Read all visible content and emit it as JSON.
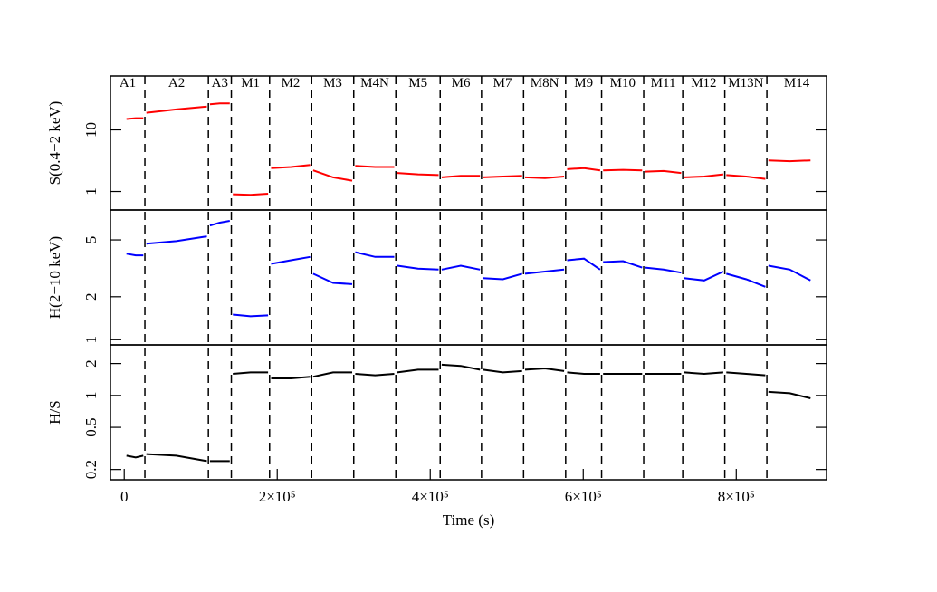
{
  "chart_data": [
    {
      "type": "line",
      "ylabel": "S(0.4−2 keV)",
      "color": "#ff0000",
      "log_y": true,
      "ylim": [
        0.5,
        75
      ],
      "yticks": [
        1,
        10
      ],
      "xlim": [
        -18000,
        918000
      ],
      "segment_labels": [
        "A1",
        "A2",
        "A3",
        "M1",
        "M2",
        "M3",
        "M4N",
        "M5",
        "M6",
        "M7",
        "M8N",
        "M9",
        "M10",
        "M11",
        "M12",
        "M13N",
        "M14"
      ],
      "vlines": [
        27000,
        110000,
        140000,
        190000,
        245000,
        300000,
        355000,
        413000,
        467000,
        522000,
        577000,
        624000,
        679000,
        730000,
        785000,
        840000
      ],
      "x": [
        3000,
        15000,
        25000,
        27000,
        29000,
        68000,
        108000,
        110000,
        112000,
        125000,
        138000,
        140000,
        142000,
        165000,
        188000,
        190000,
        192000,
        218000,
        243000,
        245000,
        247000,
        273000,
        298000,
        300000,
        302000,
        328000,
        353000,
        355000,
        357000,
        384000,
        411000,
        413000,
        415000,
        440000,
        465000,
        467000,
        469000,
        495000,
        520000,
        522000,
        524000,
        550000,
        575000,
        577000,
        579000,
        601000,
        622000,
        624000,
        626000,
        652000,
        677000,
        679000,
        681000,
        705000,
        728000,
        730000,
        732000,
        758000,
        783000,
        785000,
        787000,
        813000,
        838000,
        840000,
        842000,
        870000,
        897000
      ],
      "values": [
        15,
        15.5,
        15.5,
        null,
        19,
        21.5,
        24,
        null,
        26,
        27,
        27,
        null,
        0.9,
        0.88,
        0.92,
        null,
        2.4,
        2.5,
        2.7,
        null,
        2.2,
        1.7,
        1.5,
        null,
        2.6,
        2.5,
        2.5,
        null,
        2.0,
        1.9,
        1.85,
        null,
        1.7,
        1.8,
        1.8,
        null,
        1.7,
        1.75,
        1.8,
        null,
        1.7,
        1.65,
        1.75,
        null,
        2.3,
        2.4,
        2.2,
        null,
        2.2,
        2.25,
        2.2,
        null,
        2.1,
        2.15,
        2.0,
        null,
        1.7,
        1.75,
        1.9,
        null,
        1.85,
        1.75,
        1.6,
        null,
        3.2,
        3.1,
        3.2
      ]
    },
    {
      "type": "line",
      "ylabel": "H(2−10 keV)",
      "color": "#0000ff",
      "log_y": true,
      "ylim": [
        0.92,
        8.1
      ],
      "yticks": [
        1,
        2,
        5
      ],
      "xlim": [
        -18000,
        918000
      ],
      "x": [
        3000,
        15000,
        25000,
        27000,
        29000,
        68000,
        108000,
        110000,
        112000,
        125000,
        138000,
        140000,
        142000,
        165000,
        188000,
        190000,
        192000,
        218000,
        243000,
        245000,
        247000,
        273000,
        298000,
        300000,
        302000,
        328000,
        353000,
        355000,
        357000,
        384000,
        411000,
        413000,
        415000,
        440000,
        465000,
        467000,
        469000,
        495000,
        520000,
        522000,
        524000,
        550000,
        575000,
        577000,
        579000,
        601000,
        622000,
        624000,
        626000,
        652000,
        677000,
        679000,
        681000,
        705000,
        728000,
        730000,
        732000,
        758000,
        783000,
        785000,
        787000,
        813000,
        838000,
        840000,
        842000,
        870000,
        897000
      ],
      "values": [
        4.0,
        3.9,
        3.9,
        null,
        4.7,
        4.9,
        5.3,
        null,
        6.3,
        6.6,
        6.8,
        null,
        1.5,
        1.46,
        1.48,
        null,
        3.4,
        3.6,
        3.8,
        null,
        2.9,
        2.5,
        2.45,
        null,
        4.1,
        3.8,
        3.8,
        null,
        3.3,
        3.15,
        3.1,
        null,
        3.1,
        3.3,
        3.1,
        null,
        2.7,
        2.65,
        2.9,
        null,
        2.9,
        3.0,
        3.1,
        null,
        3.6,
        3.7,
        3.1,
        null,
        3.5,
        3.55,
        3.2,
        null,
        3.2,
        3.1,
        2.95,
        null,
        2.7,
        2.6,
        3.0,
        null,
        2.9,
        2.65,
        2.35,
        null,
        3.3,
        3.1,
        2.6
      ]
    },
    {
      "type": "line",
      "ylabel": "H/S",
      "xlabel": "Time (s)",
      "color": "#000000",
      "log_y": true,
      "ylim": [
        0.16,
        3.0
      ],
      "yticks": [
        0.2,
        0.5,
        1,
        2
      ],
      "xlim": [
        -18000,
        918000
      ],
      "xticks": [
        0,
        {
          "value": 200000,
          "label": "2×10⁵"
        },
        {
          "value": 400000,
          "label": "4×10⁵"
        },
        {
          "value": 600000,
          "label": "6×10⁵"
        },
        {
          "value": 800000,
          "label": "8×10⁵"
        }
      ],
      "x": [
        3000,
        15000,
        25000,
        27000,
        29000,
        68000,
        108000,
        110000,
        112000,
        125000,
        138000,
        140000,
        142000,
        165000,
        188000,
        190000,
        192000,
        218000,
        243000,
        245000,
        247000,
        273000,
        298000,
        300000,
        302000,
        328000,
        353000,
        355000,
        357000,
        384000,
        411000,
        413000,
        415000,
        440000,
        465000,
        467000,
        469000,
        495000,
        520000,
        522000,
        524000,
        550000,
        575000,
        577000,
        579000,
        601000,
        622000,
        624000,
        626000,
        652000,
        677000,
        679000,
        681000,
        705000,
        728000,
        730000,
        732000,
        758000,
        783000,
        785000,
        787000,
        813000,
        838000,
        840000,
        842000,
        870000,
        897000
      ],
      "values": [
        0.27,
        0.26,
        0.27,
        null,
        0.28,
        0.27,
        0.24,
        null,
        0.24,
        0.24,
        0.24,
        null,
        1.6,
        1.65,
        1.65,
        null,
        1.45,
        1.45,
        1.5,
        null,
        1.5,
        1.65,
        1.65,
        null,
        1.6,
        1.55,
        1.6,
        null,
        1.65,
        1.75,
        1.75,
        null,
        1.95,
        1.9,
        1.75,
        null,
        1.75,
        1.65,
        1.7,
        null,
        1.75,
        1.8,
        1.7,
        null,
        1.65,
        1.6,
        1.6,
        null,
        1.6,
        1.6,
        1.6,
        null,
        1.6,
        1.6,
        1.6,
        null,
        1.65,
        1.6,
        1.65,
        null,
        1.65,
        1.6,
        1.55,
        null,
        1.08,
        1.05,
        0.94
      ]
    }
  ]
}
